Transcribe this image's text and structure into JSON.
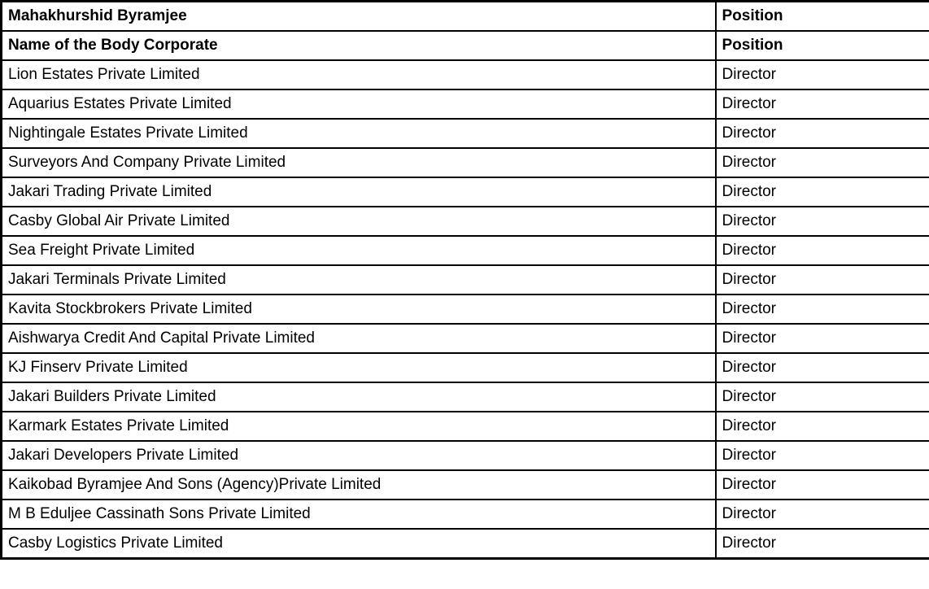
{
  "colors": {
    "header_bg": "#dce6f1",
    "border": "#000000",
    "text": "#000000"
  },
  "table": {
    "header": {
      "name": "Mahakhurshid Byramjee",
      "position": "Position"
    },
    "subheader": {
      "name": "Name of the Body Corporate",
      "position": "Position"
    },
    "rows": [
      {
        "name": "Lion Estates Private Limited",
        "position": "Director"
      },
      {
        "name": "Aquarius Estates Private Limited",
        "position": "Director"
      },
      {
        "name": "Nightingale Estates Private Limited",
        "position": "Director"
      },
      {
        "name": "Surveyors And Company Private Limited",
        "position": "Director"
      },
      {
        "name": "Jakari Trading Private Limited",
        "position": "Director"
      },
      {
        "name": "Casby Global Air Private Limited",
        "position": "Director"
      },
      {
        "name": "Sea Freight Private Limited",
        "position": "Director"
      },
      {
        "name": "Jakari Terminals Private Limited",
        "position": "Director"
      },
      {
        "name": "Kavita Stockbrokers Private Limited",
        "position": "Director"
      },
      {
        "name": "Aishwarya Credit And Capital Private Limited",
        "position": "Director"
      },
      {
        "name": "KJ Finserv Private Limited",
        "position": "Director"
      },
      {
        "name": "Jakari Builders Private Limited",
        "position": "Director"
      },
      {
        "name": "Karmark Estates Private Limited",
        "position": "Director"
      },
      {
        "name": "Jakari Developers Private Limited",
        "position": "Director"
      },
      {
        "name": "Kaikobad Byramjee And Sons (Agency)Private Limited",
        "position": "Director"
      },
      {
        "name": "M B Eduljee Cassinath Sons Private Limited",
        "position": "Director"
      },
      {
        "name": "Casby Logistics Private Limited",
        "position": "Director"
      }
    ]
  }
}
